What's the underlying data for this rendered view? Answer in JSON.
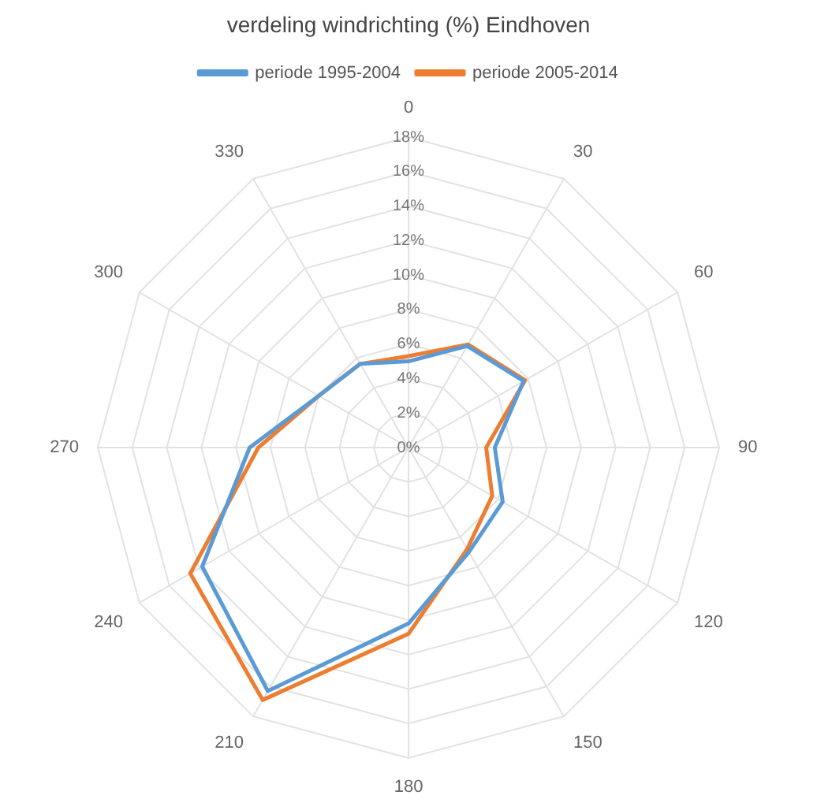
{
  "chart_data": {
    "type": "radar",
    "title": "verdeling windrichting (%) Eindhoven",
    "categories": [
      "0",
      "30",
      "60",
      "90",
      "120",
      "150",
      "180",
      "210",
      "240",
      "270",
      "300",
      "330"
    ],
    "series": [
      {
        "name": "periode 1995-2004",
        "color": "#5b9bd5",
        "values": [
          5.0,
          6.8,
          7.7,
          5.0,
          6.3,
          7.0,
          10.2,
          16.3,
          13.8,
          9.2,
          6.0,
          5.6
        ]
      },
      {
        "name": "periode 2005-2014",
        "color": "#ed7d31",
        "values": [
          5.3,
          6.9,
          7.8,
          4.5,
          5.6,
          6.8,
          10.8,
          16.9,
          14.6,
          8.7,
          6.0,
          5.6
        ]
      }
    ],
    "ylim": [
      0,
      18
    ],
    "yticks": [
      {
        "value": 0,
        "label": "0%"
      },
      {
        "value": 2,
        "label": "2%"
      },
      {
        "value": 4,
        "label": "4%"
      },
      {
        "value": 6,
        "label": "6%"
      },
      {
        "value": 8,
        "label": "8%"
      },
      {
        "value": 10,
        "label": "10%"
      },
      {
        "value": 12,
        "label": "12%"
      },
      {
        "value": 14,
        "label": "14%"
      },
      {
        "value": 16,
        "label": "16%"
      },
      {
        "value": 18,
        "label": "18%"
      }
    ],
    "grid": true,
    "legend": "top",
    "marker": "none",
    "line_style": "solid"
  }
}
